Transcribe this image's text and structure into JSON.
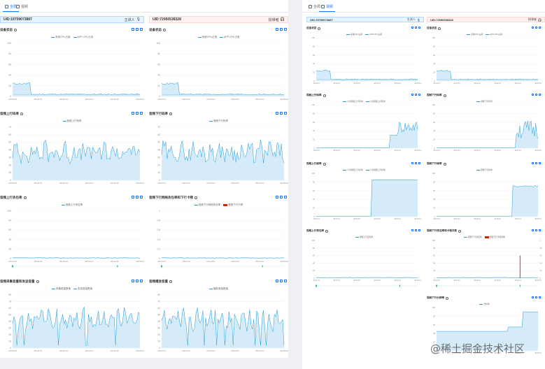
{
  "tabs_left": [
    "全局",
    "视频"
  ],
  "tabs_right": [
    "全局",
    "视频"
  ],
  "left_panel": {
    "users": [
      {
        "uid": "UID:19759073887",
        "role": "主讲人"
      },
      {
        "uid": "UID:72950538328",
        "role": "授课者"
      }
    ],
    "chart_titles": [
      [
        "设备状态",
        "设备状态"
      ],
      [
        "音频上行码率",
        "音频下行码率"
      ],
      [
        "音频上行丢包率",
        "音频下行网络丢包率和下行卡顿"
      ],
      [
        "音频采集音量和发送音量",
        "音频播放音量"
      ]
    ]
  },
  "right_panel": {
    "users": [
      {
        "uid": "UID:19759073887",
        "role": "主讲人"
      },
      {
        "uid": "UID:72950538328",
        "role": "授课者"
      }
    ],
    "chart_titles": [
      [
        "设备状态",
        "设备状态"
      ],
      [
        "视频上行码率",
        "视频下行码率"
      ],
      [
        "视频上行帧率",
        "视频下行帧率"
      ],
      [
        "视频上行丢包率",
        "视频下行丢包率和卡顿次数"
      ],
      [
        "",
        "视频下行分辨率"
      ]
    ]
  },
  "legends": {
    "device": [
      "系统CPU占用",
      "APP CPU占用"
    ],
    "audio_up_bitrate": [
      "音频上行码率"
    ],
    "audio_down_bitrate": [
      "音频下行码率"
    ],
    "audio_up_loss": [
      "音频上行丢包率"
    ],
    "audio_down_loss": [
      "音频下行网络丢包率",
      "音频下行卡顿"
    ],
    "audio_capture": [
      "采集音量数值",
      "发送音量数值"
    ],
    "audio_play": [
      "播放音量数值"
    ],
    "video_up_bitrate": [
      "大流视频上行码率",
      "小流视频上行码率"
    ],
    "video_down_bitrate": [
      "视频下行码率"
    ],
    "video_up_fps": [
      "大流视频上行帧率",
      "小流视频上行帧率"
    ],
    "video_down_fps": [
      "视频下行帧率"
    ],
    "video_up_loss": [
      "视频上行丢包率"
    ],
    "video_down_loss": [
      "视频下行丢包率",
      "视频下行卡顿次数"
    ],
    "video_resolution": [
      "分辨率"
    ]
  },
  "axis": {
    "device_y": [
      "100",
      "80",
      "60",
      "40",
      "20",
      "0"
    ],
    "audio_up_y": [
      "70",
      "60",
      "50",
      "40",
      "30",
      "20",
      "10",
      "0"
    ],
    "audio_down_y": [
      "70",
      "60",
      "50",
      "40",
      "30",
      "20",
      "10",
      "0"
    ],
    "loss_y": [
      "100",
      "80",
      "60",
      "40",
      "20",
      "0"
    ],
    "loss_right_y": [
      "1",
      "0.8",
      "0.6",
      "0.4",
      "0.2",
      "0"
    ],
    "volume_y": [
      "80",
      "70",
      "60",
      "50",
      "40",
      "30",
      "20",
      "10",
      "0"
    ],
    "time_x_left": [
      "18:23:24",
      "18:23:44",
      "18:24:04",
      "18:24:24",
      "18:24:44",
      "18:25:04"
    ],
    "time_x_left2": [
      "18:23:24",
      "18:23:44",
      "18:24:04",
      "18:24:24",
      "18:24:44",
      "18:25:04"
    ]
  },
  "watermark": "@稀土掘金技术社区",
  "colors": {
    "accent": "#1677ff",
    "line": "#1e9bd7",
    "fill": "#d6ebfa",
    "stall": "#d81e06"
  }
}
